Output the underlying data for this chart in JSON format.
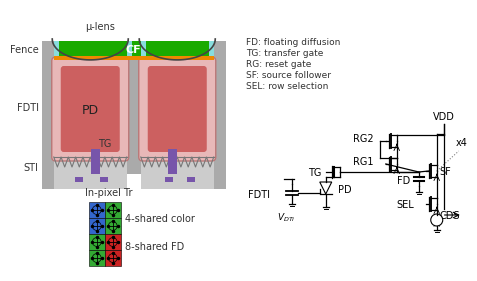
{
  "bg_color": "#ffffff",
  "colors": {
    "green_bar": "#1aaa00",
    "cyan_bar": "#88dddd",
    "orange_bar": "#ee8800",
    "gray_wall": "#aaaaaa",
    "gray_light": "#cccccc",
    "pd_fill_center": "#cc6666",
    "pd_fill_edge": "#f0c8c8",
    "purple_tg": "#7755aa",
    "black": "#000000",
    "blue_cell": "#3366cc",
    "green_cell": "#33aa33",
    "red_cell": "#cc2222",
    "dark_gray": "#555555"
  },
  "legend_text": [
    "FD: floating diffusion",
    "TG: transfer gate",
    "RG: reset gate",
    "SF: source follower",
    "SEL: row selection"
  ],
  "color_grid_label1": "4-shared color",
  "color_grid_label2": "8-shared FD",
  "labels": {
    "fence": "Fence",
    "fdti": "FDTI",
    "sti": "STI",
    "tg": "TG",
    "pd": "PD",
    "inpixel": "In-pixel Tr",
    "ulens": "μ-lens",
    "cf": "CF",
    "vdd": "VDD",
    "rg2": "RG2",
    "rg1": "RG1",
    "tg_circ": "TG",
    "fd": "FD",
    "sf": "SF",
    "sel": "SEL",
    "cds": "CDS",
    "fdti_circ": "FDTI",
    "pd_circ": "PD",
    "x4": "x4",
    "vdti": "V_{DTi}"
  }
}
